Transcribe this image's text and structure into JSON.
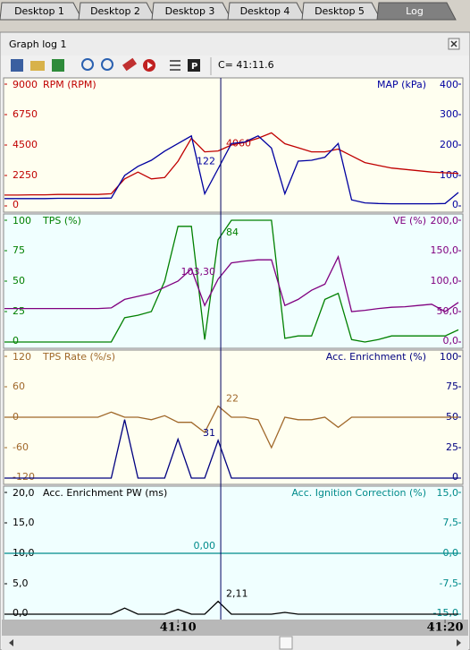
{
  "tabs": [
    "Desktop 1",
    "Desktop 2",
    "Desktop 3",
    "Desktop 4",
    "Desktop 5",
    "Log"
  ],
  "window": {
    "title": "Graph log 1",
    "cursor_readout": "C= 41:11.6"
  },
  "time_axis": {
    "x": [
      2463.5,
      2464,
      2464.5,
      2465,
      2465.5,
      2466,
      2466.5,
      2467,
      2467.5,
      2468,
      2468.5,
      2469,
      2469.5,
      2470,
      2470.5,
      2471,
      2471.5,
      2472,
      2472.5,
      2473,
      2473.5,
      2474,
      2474.5,
      2475,
      2475.5,
      2476,
      2476.5,
      2477,
      2477.5,
      2478,
      2478.5,
      2479,
      2479.5,
      2480,
      2480.5
    ],
    "xlim": [
      2463.5,
      2480.6
    ],
    "xticks": [
      {
        "value": 2470,
        "label": "41:10"
      },
      {
        "value": 2480,
        "label": "41:20"
      }
    ],
    "cursor": 2471.6
  },
  "chart_data": [
    {
      "type": "line",
      "background": "#fffff0",
      "ylim": [
        0,
        9000
      ],
      "yticks": [
        0,
        2250,
        4500,
        6750,
        9000
      ],
      "y2lim": [
        0,
        400
      ],
      "y2ticks": [
        0,
        100,
        200,
        300,
        400
      ],
      "series": [
        {
          "name": "RPM (RPM)",
          "color": "#c00000",
          "values": [
            800,
            800,
            820,
            820,
            850,
            850,
            850,
            850,
            900,
            2000,
            2500,
            2000,
            2100,
            3300,
            5000,
            4000,
            4060,
            4500,
            4700,
            5000,
            5400,
            4600,
            4300,
            4000,
            4000,
            4200,
            3700,
            3200,
            3000,
            2800,
            2700,
            2600,
            2500,
            2450,
            2400
          ]
        },
        {
          "name": "MAP (kPa)",
          "color": "#0000a0",
          "axis": "y2",
          "values": [
            24,
            24,
            24,
            24,
            25,
            25,
            25,
            25,
            26,
            100,
            130,
            150,
            180,
            205,
            230,
            40,
            122,
            205,
            210,
            230,
            190,
            40,
            147,
            150,
            160,
            205,
            20,
            10,
            8,
            7,
            7,
            7,
            7,
            8,
            44
          ]
        }
      ]
    },
    {
      "type": "line",
      "background": "#f0ffff",
      "ylim": [
        0,
        100
      ],
      "yticks": [
        0,
        25,
        50,
        75,
        100
      ],
      "y2lim": [
        0,
        200
      ],
      "y2ticks": [
        {
          "value": 0,
          "label": "0,0"
        },
        {
          "value": 50,
          "label": "50,0"
        },
        {
          "value": 100,
          "label": "100,0"
        },
        {
          "value": 150,
          "label": "150,0"
        },
        {
          "value": 200,
          "label": "200,0"
        }
      ],
      "series": [
        {
          "name": "TPS (%)",
          "color": "#008000",
          "values": [
            0,
            0,
            0,
            0,
            0,
            0,
            0,
            0,
            0,
            20,
            22,
            25,
            50,
            95,
            95,
            2,
            84,
            100,
            100,
            100,
            100,
            3,
            5,
            5,
            35,
            40,
            2,
            0,
            2,
            5,
            5,
            5,
            5,
            5,
            10
          ]
        },
        {
          "name": "VE (%)",
          "color": "#800080",
          "axis": "y2",
          "values": [
            55,
            55,
            55,
            55,
            55,
            55,
            55,
            55,
            56,
            70,
            75,
            80,
            90,
            100,
            120,
            60,
            103.3,
            130,
            133,
            135,
            135,
            60,
            70,
            85,
            95,
            140,
            50,
            52,
            55,
            57,
            58,
            60,
            62,
            50,
            65
          ],
          "value_labels": [
            null,
            null,
            null,
            null,
            null,
            null,
            null,
            null,
            null,
            null,
            null,
            null,
            null,
            null,
            null,
            null,
            "103,30",
            null,
            null,
            null,
            null,
            null,
            null,
            null,
            null,
            null,
            null,
            null,
            null,
            null,
            null,
            null,
            null,
            null,
            null
          ]
        }
      ]
    },
    {
      "type": "line",
      "background": "#fffff0",
      "ylim": [
        -120,
        120
      ],
      "yticks": [
        -120,
        -60,
        0,
        60,
        120
      ],
      "y2lim": [
        0,
        100
      ],
      "y2ticks": [
        0,
        25,
        50,
        75,
        100
      ],
      "series": [
        {
          "name": "TPS Rate (%/s)",
          "color": "#a0682a",
          "values": [
            0,
            0,
            0,
            0,
            0,
            0,
            0,
            0,
            10,
            0,
            0,
            -5,
            3,
            -10,
            -10,
            -30,
            22,
            0,
            0,
            -5,
            -60,
            0,
            -5,
            -5,
            0,
            -20,
            0,
            0,
            0,
            0,
            0,
            0,
            0,
            0,
            0
          ]
        },
        {
          "name": "Acc. Enrichment (%)",
          "color": "#000080",
          "axis": "y2",
          "values": [
            0,
            0,
            0,
            0,
            0,
            0,
            0,
            0,
            0,
            48,
            0,
            0,
            0,
            32,
            0,
            0,
            31,
            0,
            0,
            0,
            0,
            0,
            0,
            0,
            0,
            0,
            0,
            0,
            0,
            0,
            0,
            0,
            0,
            0,
            0
          ]
        }
      ]
    },
    {
      "type": "line",
      "background": "#f0ffff",
      "ylim": [
        0,
        20
      ],
      "yticks": [
        {
          "value": 0,
          "label": "0,0"
        },
        {
          "value": 5,
          "label": "5,0"
        },
        {
          "value": 10,
          "label": "10,0"
        },
        {
          "value": 15,
          "label": "15,0"
        },
        {
          "value": 20,
          "label": "20,0"
        }
      ],
      "y2lim": [
        -15,
        15
      ],
      "y2ticks": [
        {
          "value": -15,
          "label": "-15,0"
        },
        {
          "value": -7.5,
          "label": "-7,5"
        },
        {
          "value": 0,
          "label": "0,0"
        },
        {
          "value": 7.5,
          "label": "7,5"
        },
        {
          "value": 15,
          "label": "15,0"
        }
      ],
      "series": [
        {
          "name": "Acc. Enrichment PW (ms)",
          "color": "#000000",
          "values": [
            0,
            0,
            0,
            0,
            0,
            0,
            0,
            0,
            0,
            1,
            0,
            0,
            0,
            0.8,
            0,
            0,
            2.11,
            0,
            0,
            0,
            0,
            0.3,
            0,
            0,
            0,
            0,
            0,
            0,
            0,
            0,
            0,
            0,
            0,
            0,
            0
          ],
          "value_labels": [
            null,
            null,
            null,
            null,
            null,
            null,
            null,
            null,
            null,
            null,
            null,
            null,
            null,
            null,
            null,
            null,
            "2,11",
            null,
            null,
            null,
            null,
            null,
            null,
            null,
            null,
            null,
            null,
            null,
            null,
            null,
            null,
            null,
            null,
            null,
            null
          ]
        },
        {
          "name": "Acc. Ignition Correction (%)",
          "color": "#008b8b",
          "axis": "y2",
          "values": [
            0,
            0,
            0,
            0,
            0,
            0,
            0,
            0,
            0,
            0,
            0,
            0,
            0,
            0,
            0,
            0,
            0,
            0,
            0,
            0,
            0,
            0,
            0,
            0,
            0,
            0,
            0,
            0,
            0,
            0,
            0,
            0,
            0,
            0,
            0
          ],
          "value_labels": [
            null,
            null,
            null,
            null,
            null,
            null,
            null,
            null,
            null,
            null,
            null,
            null,
            null,
            null,
            null,
            null,
            "0,00",
            null,
            null,
            null,
            null,
            null,
            null,
            null,
            null,
            null,
            null,
            null,
            null,
            null,
            null,
            null,
            null,
            null,
            null
          ]
        }
      ]
    }
  ]
}
